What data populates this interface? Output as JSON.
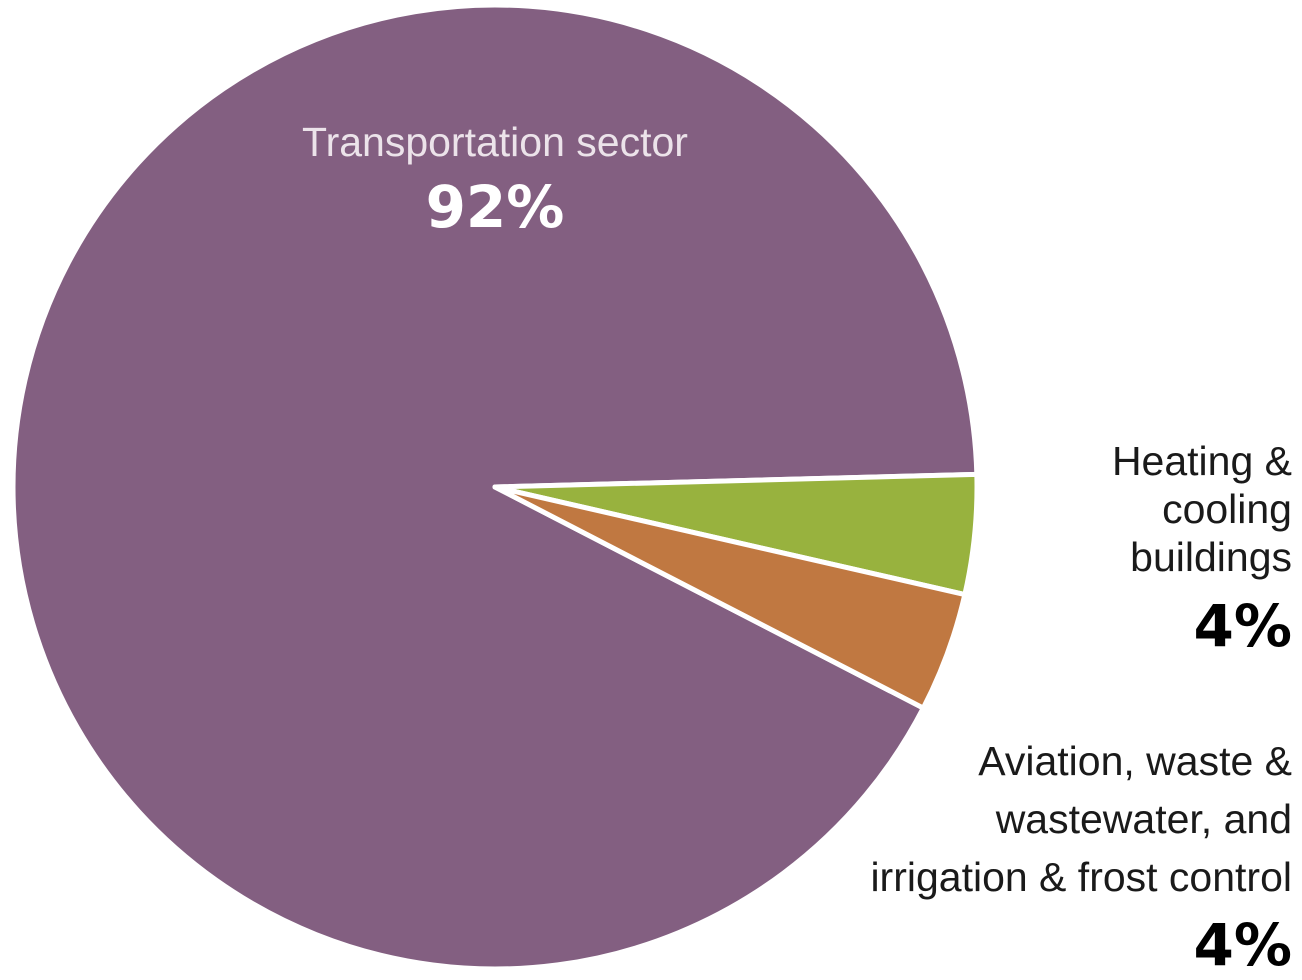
{
  "chart_data": {
    "type": "pie",
    "title": "",
    "slices": [
      {
        "label": "Transportation sector",
        "value": 92,
        "value_label": "92%",
        "color": "#835f81"
      },
      {
        "label": "Heating &\ncooling\nbuildings",
        "value": 4,
        "value_label": "4%",
        "color": "#98b23e"
      },
      {
        "label": "Aviation, waste &\nwastewater, and\nirrigation & frost control",
        "value": 4,
        "value_label": "4%",
        "color": "#c07841"
      }
    ],
    "legend": "none",
    "start": "right-horizontal",
    "direction": "clockwise-for-small-slices"
  }
}
